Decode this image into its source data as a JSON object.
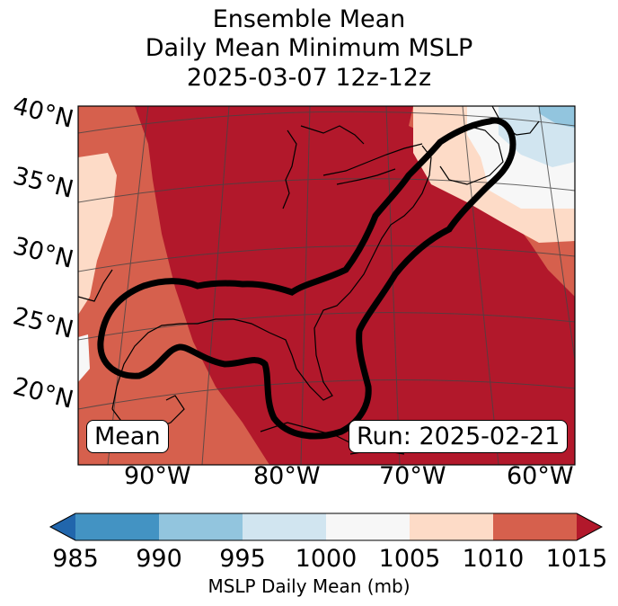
{
  "title": {
    "line1": "Ensemble Mean",
    "line2": "Daily Mean Minimum MSLP",
    "line3": "2025-03-07 12z-12z"
  },
  "latitude_labels": [
    "40°N",
    "35°N",
    "30°N",
    "25°N",
    "20°N"
  ],
  "longitude_labels": [
    "90°W",
    "80°W",
    "70°W",
    "60°W"
  ],
  "annotations": {
    "left": "Mean",
    "right": "Run: 2025-02-21"
  },
  "colorbar": {
    "label": "MSLP Daily Mean (mb)",
    "ticks": [
      "985",
      "990",
      "995",
      "1000",
      "1005",
      "1010",
      "1015"
    ],
    "bins": [
      {
        "range": "<985",
        "color": "#2166ac"
      },
      {
        "range": "985-990",
        "color": "#4393c3"
      },
      {
        "range": "990-995",
        "color": "#92c5de"
      },
      {
        "range": "995-1000",
        "color": "#d1e5f0"
      },
      {
        "range": "1000-1005",
        "color": "#f7f7f7"
      },
      {
        "range": "1005-1010",
        "color": "#fddbc7"
      },
      {
        "range": "1010-1015",
        "color": "#d6604d"
      },
      {
        "range": ">1015",
        "color": "#b2182b"
      }
    ]
  }
}
